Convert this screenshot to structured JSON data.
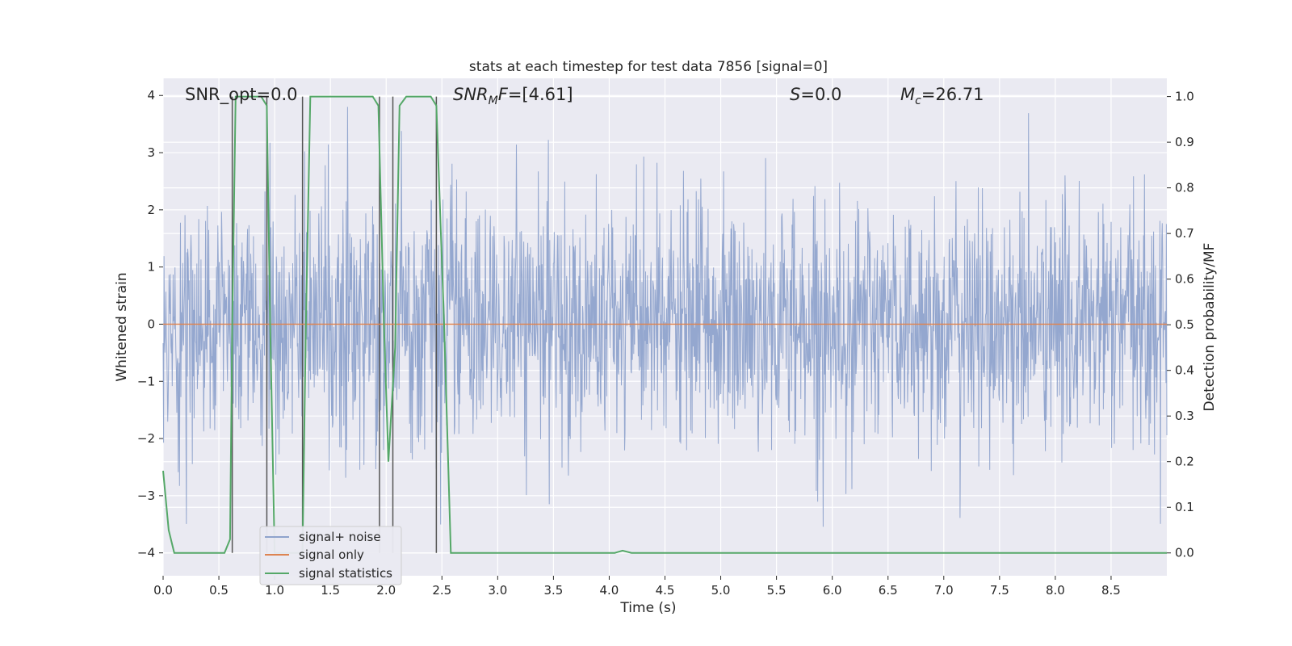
{
  "chart_data": {
    "type": "line",
    "title": "stats at each timestep for test data 7856 [signal=0]",
    "xlabel": "Time (s)",
    "ylabel_left": "Whitened strain",
    "ylabel_right": "Detection probability/MF",
    "xlim": [
      0.0,
      9.0
    ],
    "ylim_left": [
      -4.4,
      4.3
    ],
    "ylim_right": [
      -0.05,
      1.04
    ],
    "x_ticks": [
      "0.0",
      "0.5",
      "1.0",
      "1.5",
      "2.0",
      "2.5",
      "3.0",
      "3.5",
      "4.0",
      "4.5",
      "5.0",
      "5.5",
      "6.0",
      "6.5",
      "7.0",
      "7.5",
      "8.0",
      "8.5"
    ],
    "y_ticks_left": [
      "4",
      "3",
      "2",
      "1",
      "0",
      "−1",
      "−2",
      "−3",
      "−4"
    ],
    "y_ticks_right": [
      "1.0",
      "0.9",
      "0.8",
      "0.7",
      "0.6",
      "0.5",
      "0.4",
      "0.3",
      "0.2",
      "0.1",
      "0.0"
    ],
    "grid": true,
    "annotations": {
      "snr_opt": "SNR_opt=0.0",
      "snr_mf": "=[4.61]",
      "s": "=0.0",
      "mc": "=26.71"
    },
    "legend": {
      "placement": "lower-left",
      "entries": [
        "signal+ noise",
        "signal only",
        "signal statistics"
      ]
    },
    "series": [
      {
        "name": "signal+ noise",
        "description_range": [
          -3.8,
          3.8
        ],
        "color": "#8fa3cc"
      },
      {
        "name": "signal only",
        "values_constant": 0.0,
        "color": "#dd8452"
      },
      {
        "name": "signal statistics",
        "color": "#55a868",
        "x": [
          0.0,
          0.05,
          0.1,
          0.15,
          0.55,
          0.6,
          0.62,
          0.65,
          0.7,
          0.88,
          0.93,
          0.96,
          1.0,
          1.25,
          1.28,
          1.32,
          1.88,
          1.93,
          1.98,
          2.02,
          2.08,
          2.12,
          2.18,
          2.4,
          2.45,
          2.52,
          2.58,
          2.65,
          4.05,
          4.12,
          4.2,
          9.0
        ],
        "y": [
          0.18,
          0.05,
          0.0,
          0.0,
          0.0,
          0.03,
          0.5,
          1.0,
          1.0,
          1.0,
          0.98,
          0.5,
          0.0,
          0.0,
          0.5,
          1.0,
          1.0,
          0.98,
          0.5,
          0.2,
          0.45,
          0.98,
          1.0,
          1.0,
          0.98,
          0.5,
          0.0,
          0.0,
          0.0,
          0.005,
          0.0,
          0.0
        ]
      }
    ],
    "vertical_markers_x": [
      0.62,
      0.93,
      1.25,
      1.94,
      2.06,
      2.45
    ]
  }
}
